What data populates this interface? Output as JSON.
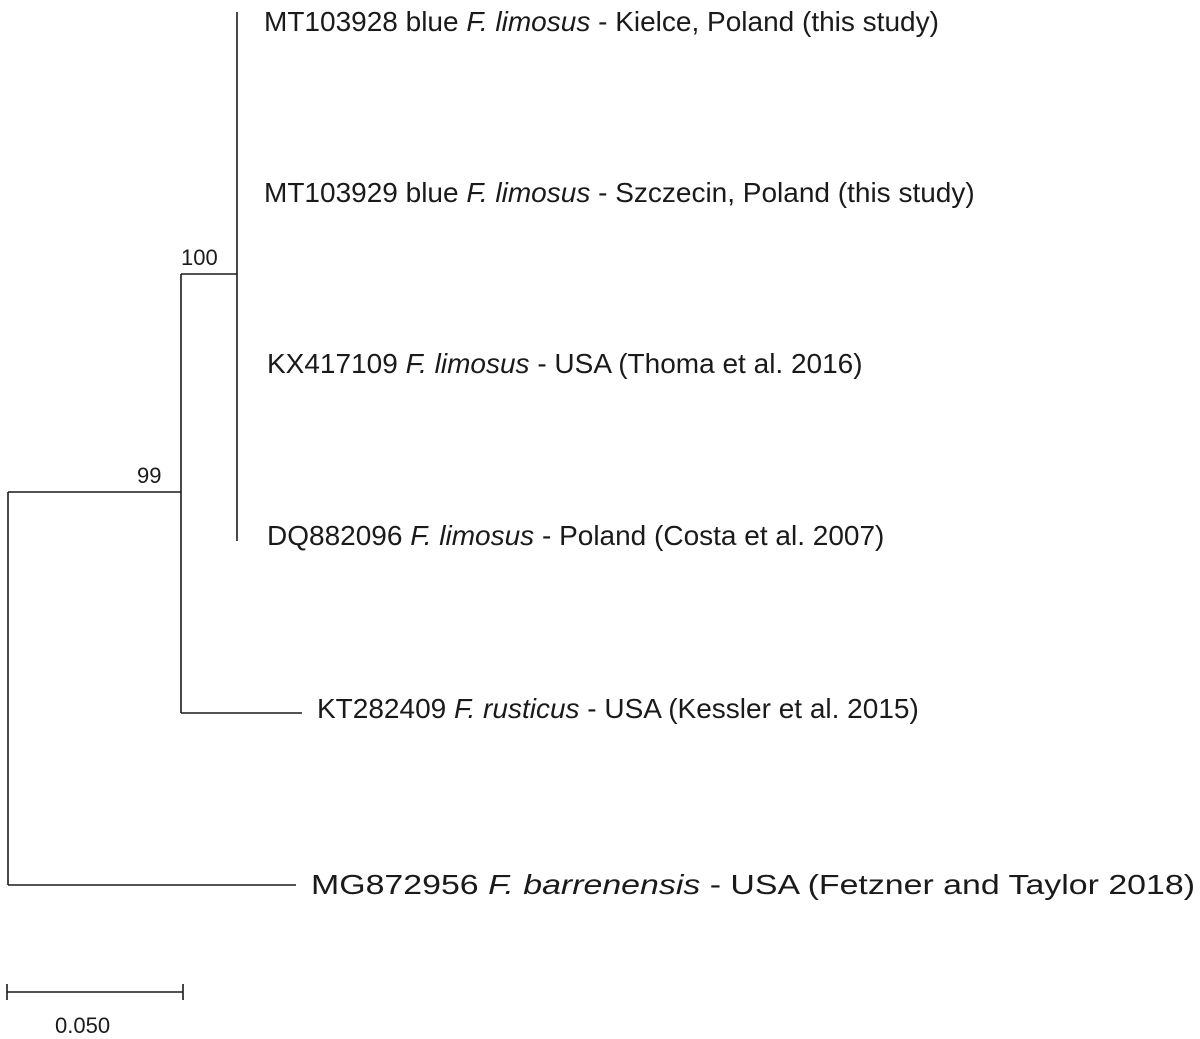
{
  "tree": {
    "taxa": [
      {
        "accession": "MT103928 blue ",
        "species": "F. limosus",
        "suffix": " - Kielce, Poland (this study)"
      },
      {
        "accession": "MT103929 blue ",
        "species": "F. limosus",
        "suffix": " - Szczecin, Poland (this study)"
      },
      {
        "accession": "KX417109 ",
        "species": "F. limosus",
        "suffix": " - USA (Thoma et al. 2016)"
      },
      {
        "accession": "DQ882096 ",
        "species": "F. limosus",
        "suffix": " - Poland (Costa et al. 2007)"
      },
      {
        "accession": "KT282409 ",
        "species": "F. rusticus",
        "suffix": " - USA (Kessler et al. 2015)"
      },
      {
        "accession": "MG872956 ",
        "species": "F. barrenensis",
        "suffix": " - USA (Fetzner and Taylor 2018)"
      }
    ],
    "bootstrap": {
      "limosus_clade": "100",
      "limosus_rusticus_clade": "99"
    },
    "scale_bar": {
      "label": "0.050"
    },
    "colors": {
      "line": "#1a1a1a",
      "background": "#ffffff"
    }
  }
}
